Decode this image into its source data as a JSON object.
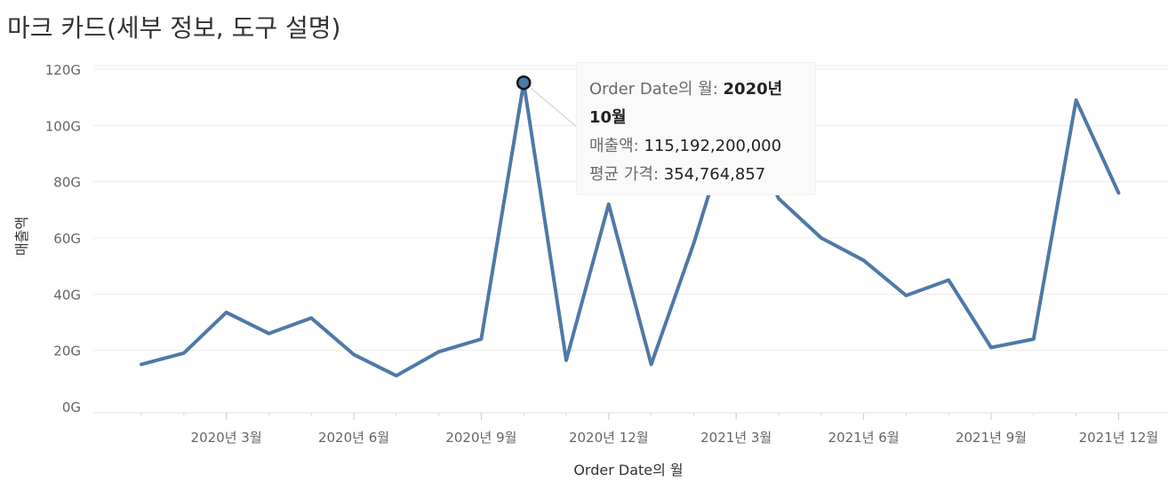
{
  "page_title": "마크 카드(세부 정보, 도구 설명)",
  "chart_data": {
    "type": "line",
    "title": "",
    "xlabel": "Order Date의 월",
    "ylabel": "매출액",
    "ylim": [
      0,
      120
    ],
    "y_unit_suffix": "G",
    "yticks": [
      0,
      20,
      40,
      60,
      80,
      100,
      120
    ],
    "ytick_labels": [
      "0G",
      "20G",
      "40G",
      "60G",
      "80G",
      "100G",
      "120G"
    ],
    "x": [
      "2020-01",
      "2020-02",
      "2020-03",
      "2020-04",
      "2020-05",
      "2020-06",
      "2020-07",
      "2020-08",
      "2020-09",
      "2020-10",
      "2020-11",
      "2020-12",
      "2021-01",
      "2021-02",
      "2021-03",
      "2021-04",
      "2021-05",
      "2021-06",
      "2021-07",
      "2021-08",
      "2021-09",
      "2021-10",
      "2021-11",
      "2021-12"
    ],
    "xtick_labels": [
      {
        "month": "2020-03",
        "label": "2020년 3월"
      },
      {
        "month": "2020-06",
        "label": "2020년 6월"
      },
      {
        "month": "2020-09",
        "label": "2020년 9월"
      },
      {
        "month": "2020-12",
        "label": "2020년 12월"
      },
      {
        "month": "2021-03",
        "label": "2021년 3월"
      },
      {
        "month": "2021-06",
        "label": "2021년 6월"
      },
      {
        "month": "2021-09",
        "label": "2021년 9월"
      },
      {
        "month": "2021-12",
        "label": "2021년 12월"
      }
    ],
    "series": [
      {
        "values": [
          15,
          19,
          33.5,
          26,
          31.5,
          18.5,
          11,
          19.5,
          24,
          115.2,
          16.5,
          72,
          15,
          58,
          107,
          74,
          60,
          52,
          39.5,
          45,
          21,
          24,
          109,
          76
        ],
        "color": "#4e79a7"
      }
    ],
    "highlighted_index": 9,
    "grid": true,
    "tooltip": {
      "rows": [
        {
          "label": "Order Date의 월: ",
          "value_line1": "2020년",
          "value_line2": "10월",
          "bold": true
        },
        {
          "label": "매출액: ",
          "value": "115,192,200,000"
        },
        {
          "label": "평균 가격: ",
          "value": "354,764,857"
        }
      ]
    }
  }
}
